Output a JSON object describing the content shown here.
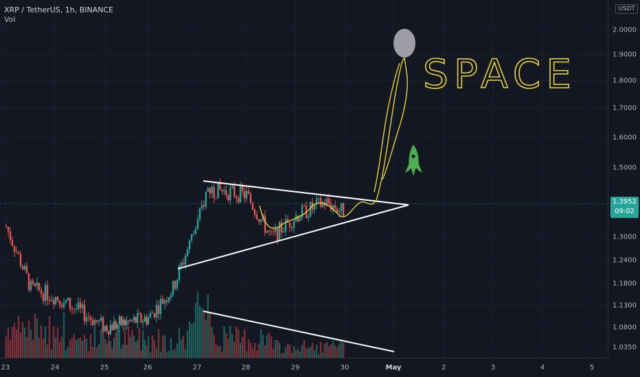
{
  "header": {
    "symbol_line": "XRP / TetherUS, 1h, BINANCE",
    "volume_label": "Vol"
  },
  "price_axis": {
    "currency": "USDT",
    "ticks": [
      "2.0000",
      "1.9000",
      "1.8000",
      "1.7000",
      "1.6000",
      "1.5000",
      "1.3000",
      "1.2400",
      "1.1800",
      "1.1300",
      "1.0800",
      "1.0350"
    ],
    "last_price": "1.3952",
    "countdown": "09:02"
  },
  "time_axis": {
    "ticks": [
      "23",
      "24",
      "25",
      "26",
      "27",
      "28",
      "29",
      "30",
      "May",
      "2",
      "3",
      "4",
      "5"
    ]
  },
  "annotations": {
    "space_text": "SPACE"
  },
  "colors": {
    "background": "#131722",
    "bull": "#26a69a",
    "bear": "#ef5350",
    "bull_volume": "#1f5d58",
    "bear_volume": "#7a3036",
    "trendline": "#ffffff",
    "drawing": "#e8d33a",
    "rocket": "#4caf50",
    "balloon": "#9e9fa6"
  },
  "chart_data": {
    "type": "candlestick",
    "symbol": "XRP / TetherUS",
    "interval": "1h",
    "exchange": "BINANCE",
    "last_price": 1.3952,
    "ylim": [
      1.0,
      2.05
    ],
    "y_scale": "log",
    "x_categories": [
      "23",
      "24",
      "25",
      "26",
      "27",
      "28",
      "29",
      "30",
      "May",
      "2",
      "3",
      "4",
      "5"
    ],
    "price_path_key_points": [
      {
        "x": "23",
        "y": 1.33
      },
      {
        "x": "23.5",
        "y": 1.17
      },
      {
        "x": "24",
        "y": 1.15
      },
      {
        "x": "25",
        "y": 1.08
      },
      {
        "x": "26",
        "y": 1.1
      },
      {
        "x": "26.5",
        "y": 1.17
      },
      {
        "x": "27",
        "y": 1.34
      },
      {
        "x": "27.2",
        "y": 1.44
      },
      {
        "x": "28",
        "y": 1.42
      },
      {
        "x": "28.5",
        "y": 1.3
      },
      {
        "x": "29",
        "y": 1.36
      },
      {
        "x": "29.6",
        "y": 1.4
      },
      {
        "x": "30",
        "y": 1.37
      }
    ],
    "trendlines": [
      {
        "name": "triangle upper",
        "from": {
          "x": "27.1",
          "y": 1.45
        },
        "to": {
          "x": "May 1.3",
          "y": 1.39
        }
      },
      {
        "name": "triangle lower",
        "from": {
          "x": "26.6",
          "y": 1.22
        },
        "to": {
          "x": "May 1.3",
          "y": 1.39
        }
      },
      {
        "name": "volume trend",
        "from": {
          "x": "27.1",
          "y": null
        },
        "to": {
          "x": "May",
          "y": null
        }
      }
    ],
    "grid": true
  }
}
